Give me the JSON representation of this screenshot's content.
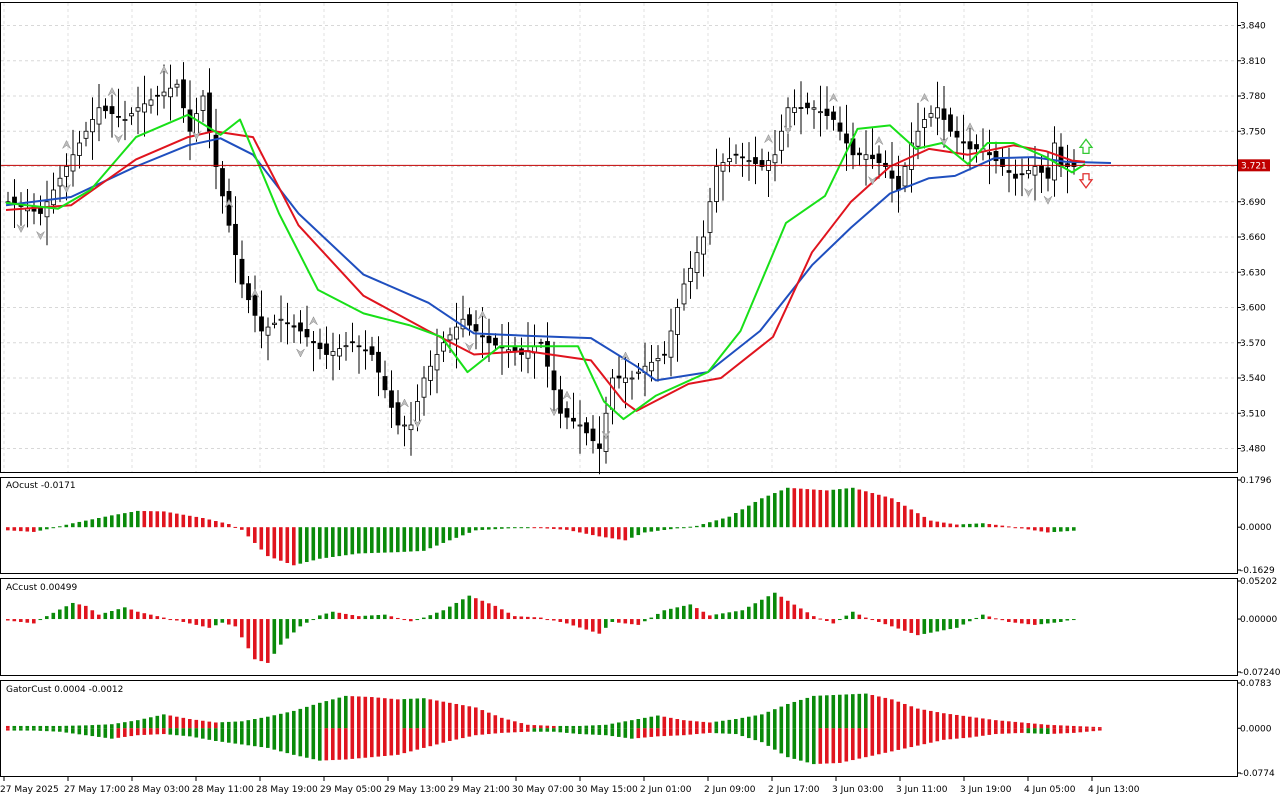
{
  "chart_data": [
    {
      "type": "candlestick",
      "panel": "main",
      "ylim": [
        3.46,
        3.86
      ],
      "y_ticks": [
        "3.840",
        "3.810",
        "3.780",
        "3.750",
        "3.720",
        "3.690",
        "3.660",
        "3.630",
        "3.600",
        "3.570",
        "3.540",
        "3.510",
        "3.480"
      ],
      "current_price": "3.721",
      "colors": {
        "price_line": "#c00000",
        "alligator_jaw": "#1f4fbf",
        "alligator_teeth": "#e0141e",
        "alligator_lips": "#18e018",
        "bull": "#ffffff",
        "bear": "#000000",
        "buy_arrow": "#34c934",
        "sell_arrow": "#e03030"
      },
      "anchors": [
        [
          0,
          3.69
        ],
        [
          5,
          3.68
        ],
        [
          10,
          3.73
        ],
        [
          14,
          3.77
        ],
        [
          18,
          3.76
        ],
        [
          20,
          3.77
        ],
        [
          26,
          3.79
        ],
        [
          28,
          3.75
        ],
        [
          30,
          3.78
        ],
        [
          32,
          3.72
        ],
        [
          36,
          3.62
        ],
        [
          39,
          3.58
        ],
        [
          42,
          3.59
        ],
        [
          45,
          3.58
        ],
        [
          49,
          3.56
        ],
        [
          53,
          3.57
        ],
        [
          56,
          3.56
        ],
        [
          60,
          3.5
        ],
        [
          62,
          3.5
        ],
        [
          64,
          3.54
        ],
        [
          67,
          3.57
        ],
        [
          70,
          3.59
        ],
        [
          74,
          3.57
        ],
        [
          79,
          3.56
        ],
        [
          82,
          3.57
        ],
        [
          85,
          3.51
        ],
        [
          88,
          3.5
        ],
        [
          91,
          3.48
        ],
        [
          93,
          3.54
        ],
        [
          96,
          3.54
        ],
        [
          98,
          3.55
        ],
        [
          101,
          3.56
        ],
        [
          104,
          3.62
        ],
        [
          107,
          3.66
        ],
        [
          109,
          3.72
        ],
        [
          112,
          3.73
        ],
        [
          116,
          3.72
        ],
        [
          118,
          3.73
        ],
        [
          120,
          3.77
        ],
        [
          124,
          3.77
        ],
        [
          127,
          3.76
        ],
        [
          130,
          3.73
        ],
        [
          132,
          3.73
        ],
        [
          135,
          3.72
        ],
        [
          137,
          3.7
        ],
        [
          139,
          3.74
        ],
        [
          141,
          3.76
        ],
        [
          143,
          3.77
        ],
        [
          145,
          3.75
        ],
        [
          148,
          3.735
        ],
        [
          150,
          3.735
        ],
        [
          153,
          3.72
        ],
        [
          155,
          3.71
        ],
        [
          158,
          3.72
        ],
        [
          160,
          3.71
        ],
        [
          161,
          3.74
        ],
        [
          162,
          3.72
        ]
      ],
      "lines": {
        "jaw": [
          [
            0,
            3.687
          ],
          [
            10,
            3.694
          ],
          [
            20,
            3.72
          ],
          [
            28,
            3.738
          ],
          [
            33,
            3.744
          ],
          [
            38,
            3.73
          ],
          [
            45,
            3.68
          ],
          [
            55,
            3.628
          ],
          [
            65,
            3.604
          ],
          [
            72,
            3.578
          ],
          [
            80,
            3.576
          ],
          [
            90,
            3.574
          ],
          [
            97,
            3.55
          ],
          [
            100,
            3.538
          ],
          [
            108,
            3.545
          ],
          [
            116,
            3.58
          ],
          [
            124,
            3.636
          ],
          [
            130,
            3.668
          ],
          [
            136,
            3.697
          ],
          [
            142,
            3.71
          ],
          [
            146,
            3.712
          ],
          [
            152,
            3.727
          ],
          [
            158,
            3.728
          ],
          [
            163,
            3.724
          ],
          [
            170,
            3.723
          ]
        ],
        "teeth": [
          [
            0,
            3.683
          ],
          [
            10,
            3.687
          ],
          [
            20,
            3.726
          ],
          [
            28,
            3.745
          ],
          [
            32,
            3.75
          ],
          [
            38,
            3.745
          ],
          [
            45,
            3.67
          ],
          [
            55,
            3.61
          ],
          [
            65,
            3.58
          ],
          [
            72,
            3.56
          ],
          [
            80,
            3.563
          ],
          [
            90,
            3.555
          ],
          [
            95,
            3.52
          ],
          [
            97,
            3.512
          ],
          [
            105,
            3.535
          ],
          [
            110,
            3.54
          ],
          [
            118,
            3.575
          ],
          [
            124,
            3.647
          ],
          [
            130,
            3.69
          ],
          [
            136,
            3.72
          ],
          [
            142,
            3.735
          ],
          [
            148,
            3.73
          ],
          [
            155,
            3.738
          ],
          [
            160,
            3.733
          ],
          [
            164,
            3.725
          ],
          [
            166,
            3.724
          ]
        ],
        "lips": [
          [
            0,
            3.689
          ],
          [
            8,
            3.684
          ],
          [
            13,
            3.7
          ],
          [
            20,
            3.745
          ],
          [
            28,
            3.764
          ],
          [
            33,
            3.747
          ],
          [
            36,
            3.76
          ],
          [
            42,
            3.68
          ],
          [
            48,
            3.615
          ],
          [
            55,
            3.595
          ],
          [
            62,
            3.585
          ],
          [
            67,
            3.575
          ],
          [
            71,
            3.545
          ],
          [
            76,
            3.567
          ],
          [
            82,
            3.567
          ],
          [
            88,
            3.567
          ],
          [
            92,
            3.52
          ],
          [
            95,
            3.505
          ],
          [
            100,
            3.525
          ],
          [
            108,
            3.545
          ],
          [
            113,
            3.58
          ],
          [
            120,
            3.672
          ],
          [
            126,
            3.695
          ],
          [
            131,
            3.752
          ],
          [
            136,
            3.755
          ],
          [
            140,
            3.735
          ],
          [
            144,
            3.74
          ],
          [
            148,
            3.722
          ],
          [
            151,
            3.74
          ],
          [
            155,
            3.74
          ],
          [
            160,
            3.728
          ],
          [
            164,
            3.715
          ],
          [
            166,
            3.722
          ]
        ]
      },
      "fractal_up_bars": [
        9,
        16,
        24,
        34,
        38,
        47,
        61,
        73,
        86,
        95,
        117,
        127,
        134,
        141,
        148
      ],
      "fractal_down_bars": [
        2,
        5,
        9,
        17,
        29,
        45,
        63,
        71,
        84,
        92,
        120,
        133,
        144,
        157,
        160
      ]
    },
    {
      "type": "bar",
      "panel": "AOcust",
      "label": "AOcust -0.0171",
      "ylim": [
        -0.1629,
        0.1796
      ],
      "y_ticks": [
        "0.1796",
        "0.0000",
        "-0.1629"
      ],
      "anchors": [
        [
          0,
          -0.012
        ],
        [
          4,
          -0.018
        ],
        [
          6,
          -0.008
        ],
        [
          10,
          0.015
        ],
        [
          16,
          0.045
        ],
        [
          20,
          0.062
        ],
        [
          24,
          0.06
        ],
        [
          30,
          0.035
        ],
        [
          34,
          0.012
        ],
        [
          36,
          -0.01
        ],
        [
          40,
          -0.11
        ],
        [
          44,
          -0.145
        ],
        [
          48,
          -0.12
        ],
        [
          54,
          -0.1
        ],
        [
          60,
          -0.095
        ],
        [
          64,
          -0.09
        ],
        [
          68,
          -0.05
        ],
        [
          72,
          -0.012
        ],
        [
          80,
          0.0
        ],
        [
          86,
          -0.01
        ],
        [
          91,
          -0.035
        ],
        [
          95,
          -0.05
        ],
        [
          98,
          -0.02
        ],
        [
          106,
          0.005
        ],
        [
          111,
          0.04
        ],
        [
          116,
          0.11
        ],
        [
          120,
          0.15
        ],
        [
          126,
          0.14
        ],
        [
          130,
          0.15
        ],
        [
          136,
          0.11
        ],
        [
          142,
          0.025
        ],
        [
          146,
          0.01
        ],
        [
          150,
          0.015
        ],
        [
          154,
          0.003
        ],
        [
          160,
          -0.02
        ],
        [
          166,
          -0.01
        ]
      ],
      "color_up": "#0a8a0a",
      "color_down": "#e0141e"
    },
    {
      "type": "bar",
      "panel": "ACcust",
      "label": "ACcust 0.00499",
      "ylim": [
        -0.0724,
        0.05202
      ],
      "y_ticks": [
        "0.05202",
        "0.00000",
        "-0.07240"
      ],
      "anchors": [
        [
          0,
          -0.002
        ],
        [
          4,
          -0.006
        ],
        [
          6,
          0.004
        ],
        [
          10,
          0.022
        ],
        [
          12,
          0.018
        ],
        [
          14,
          0.006
        ],
        [
          18,
          0.016
        ],
        [
          20,
          0.01
        ],
        [
          24,
          0.002
        ],
        [
          28,
          -0.006
        ],
        [
          31,
          -0.012
        ],
        [
          33,
          -0.005
        ],
        [
          35,
          -0.01
        ],
        [
          38,
          -0.055
        ],
        [
          40,
          -0.06
        ],
        [
          42,
          -0.035
        ],
        [
          45,
          -0.01
        ],
        [
          48,
          0.005
        ],
        [
          50,
          0.01
        ],
        [
          54,
          0.004
        ],
        [
          58,
          0.006
        ],
        [
          62,
          -0.003
        ],
        [
          64,
          0.002
        ],
        [
          67,
          0.012
        ],
        [
          71,
          0.032
        ],
        [
          75,
          0.018
        ],
        [
          78,
          0.004
        ],
        [
          82,
          0.002
        ],
        [
          86,
          -0.006
        ],
        [
          91,
          -0.02
        ],
        [
          93,
          -0.004
        ],
        [
          97,
          -0.008
        ],
        [
          101,
          0.012
        ],
        [
          105,
          0.02
        ],
        [
          108,
          0.005
        ],
        [
          113,
          0.012
        ],
        [
          118,
          0.036
        ],
        [
          120,
          0.025
        ],
        [
          124,
          0.004
        ],
        [
          127,
          -0.006
        ],
        [
          130,
          0.01
        ],
        [
          132,
          0.002
        ],
        [
          136,
          -0.01
        ],
        [
          140,
          -0.022
        ],
        [
          146,
          -0.012
        ],
        [
          150,
          0.006
        ],
        [
          154,
          -0.004
        ],
        [
          158,
          -0.008
        ],
        [
          162,
          -0.004
        ],
        [
          166,
          0.004
        ]
      ],
      "color_up": "#0a8a0a",
      "color_down": "#e0141e"
    },
    {
      "type": "bar",
      "panel": "GatorCust",
      "label": "GatorCust 0.0004 -0.0012",
      "ylim": [
        -0.0774,
        0.0783
      ],
      "y_ticks": [
        "0.0783",
        "0.0000",
        "-0.0774"
      ],
      "upper_anchors": [
        [
          0,
          0.004
        ],
        [
          4,
          0.004
        ],
        [
          8,
          0.004
        ],
        [
          12,
          0.005
        ],
        [
          16,
          0.007
        ],
        [
          20,
          0.014
        ],
        [
          24,
          0.024
        ],
        [
          28,
          0.016
        ],
        [
          32,
          0.01
        ],
        [
          36,
          0.012
        ],
        [
          40,
          0.02
        ],
        [
          44,
          0.03
        ],
        [
          48,
          0.044
        ],
        [
          52,
          0.056
        ],
        [
          56,
          0.054
        ],
        [
          60,
          0.05
        ],
        [
          64,
          0.052
        ],
        [
          68,
          0.044
        ],
        [
          72,
          0.036
        ],
        [
          76,
          0.018
        ],
        [
          80,
          0.006
        ],
        [
          84,
          0.004
        ],
        [
          88,
          0.004
        ],
        [
          92,
          0.006
        ],
        [
          96,
          0.014
        ],
        [
          100,
          0.022
        ],
        [
          104,
          0.014
        ],
        [
          108,
          0.01
        ],
        [
          112,
          0.016
        ],
        [
          116,
          0.024
        ],
        [
          120,
          0.042
        ],
        [
          124,
          0.056
        ],
        [
          128,
          0.058
        ],
        [
          132,
          0.06
        ],
        [
          136,
          0.05
        ],
        [
          140,
          0.034
        ],
        [
          144,
          0.026
        ],
        [
          148,
          0.02
        ],
        [
          152,
          0.014
        ],
        [
          156,
          0.01
        ],
        [
          160,
          0.006
        ],
        [
          164,
          0.004
        ],
        [
          168,
          0.002
        ]
      ],
      "lower_anchors": [
        [
          0,
          0.004
        ],
        [
          4,
          0.004
        ],
        [
          8,
          0.006
        ],
        [
          12,
          0.012
        ],
        [
          16,
          0.018
        ],
        [
          20,
          0.012
        ],
        [
          24,
          0.01
        ],
        [
          28,
          0.014
        ],
        [
          32,
          0.022
        ],
        [
          36,
          0.028
        ],
        [
          40,
          0.034
        ],
        [
          44,
          0.046
        ],
        [
          48,
          0.056
        ],
        [
          52,
          0.054
        ],
        [
          56,
          0.05
        ],
        [
          60,
          0.046
        ],
        [
          64,
          0.034
        ],
        [
          68,
          0.022
        ],
        [
          72,
          0.012
        ],
        [
          76,
          0.008
        ],
        [
          80,
          0.006
        ],
        [
          84,
          0.006
        ],
        [
          88,
          0.01
        ],
        [
          92,
          0.012
        ],
        [
          96,
          0.018
        ],
        [
          100,
          0.014
        ],
        [
          104,
          0.012
        ],
        [
          108,
          0.008
        ],
        [
          112,
          0.01
        ],
        [
          116,
          0.024
        ],
        [
          120,
          0.05
        ],
        [
          124,
          0.062
        ],
        [
          128,
          0.06
        ],
        [
          132,
          0.05
        ],
        [
          136,
          0.04
        ],
        [
          140,
          0.03
        ],
        [
          144,
          0.02
        ],
        [
          148,
          0.016
        ],
        [
          152,
          0.01
        ],
        [
          156,
          0.008
        ],
        [
          160,
          0.01
        ],
        [
          164,
          0.008
        ],
        [
          168,
          0.004
        ]
      ],
      "color_up": "#0a8a0a",
      "color_down": "#e0141e"
    }
  ],
  "x_axis": {
    "labels": [
      "27 May 2025",
      "27 May 17:00",
      "28 May 03:00",
      "28 May 11:00",
      "28 May 19:00",
      "29 May 05:00",
      "29 May 13:00",
      "29 May 21:00",
      "30 May 07:00",
      "30 May 15:00",
      "2 Jun 01:00",
      "2 Jun 09:00",
      "2 Jun 17:00",
      "3 Jun 03:00",
      "3 Jun 11:00",
      "3 Jun 19:00",
      "4 Jun 05:00",
      "4 Jun 13:00"
    ],
    "bar_count": 165
  }
}
